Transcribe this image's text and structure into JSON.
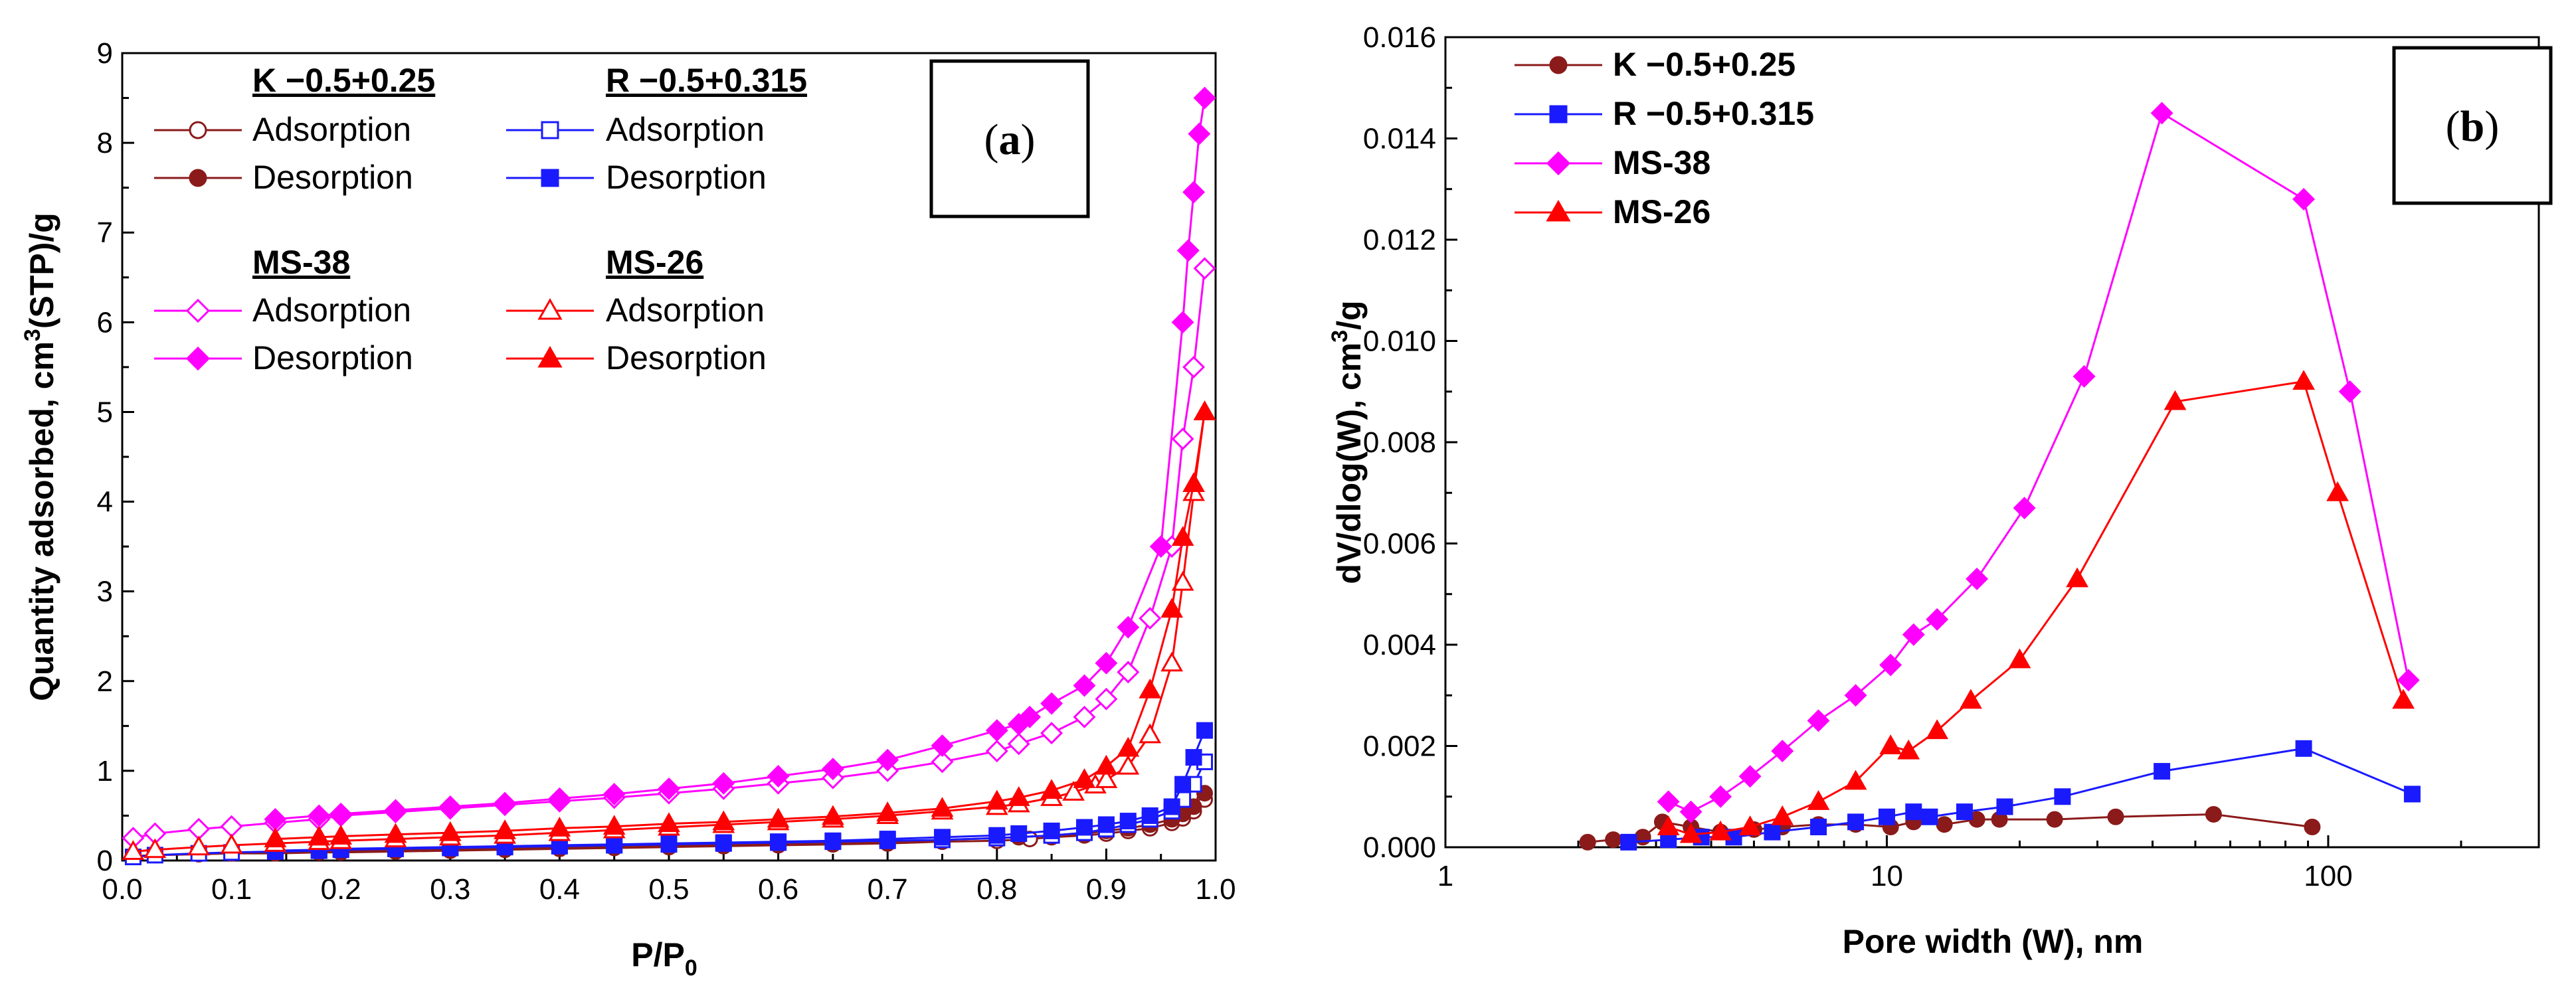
{
  "chart_data": [
    {
      "id": "a",
      "type": "line",
      "panel_label": "a",
      "xlabel": "P/P",
      "xlabel_sub": "0",
      "ylabel": "Quantity adsorbed, cm",
      "ylabel_sup": "3",
      "ylabel_tail": "(STP)/g",
      "xlim": [
        0.0,
        1.0
      ],
      "ylim": [
        0,
        9
      ],
      "x_ticks": [
        0.0,
        0.1,
        0.2,
        0.3,
        0.4,
        0.5,
        0.6,
        0.7,
        0.8,
        0.9,
        1.0
      ],
      "x_tick_labels": [
        "0.0",
        "0.1",
        "0.2",
        "0.3",
        "0.4",
        "0.5",
        "0.6",
        "0.7",
        "0.8",
        "0.9",
        "1.0"
      ],
      "y_ticks": [
        0,
        1,
        2,
        3,
        4,
        5,
        6,
        7,
        8,
        9
      ],
      "y_tick_labels": [
        "0",
        "1",
        "2",
        "3",
        "4",
        "5",
        "6",
        "7",
        "8",
        "9"
      ],
      "legend_groups": [
        {
          "title": "K −0.5+0.25",
          "adsorption_label": "Adsorption",
          "desorption_label": "Desorption"
        },
        {
          "title": "R −0.5+0.315",
          "adsorption_label": "Adsorption",
          "desorption_label": "Desorption"
        },
        {
          "title": "MS-38",
          "adsorption_label": "Adsorption",
          "desorption_label": "Desorption"
        },
        {
          "title": "MS-26",
          "adsorption_label": "Adsorption",
          "desorption_label": "Desorption"
        }
      ],
      "series": [
        {
          "name": "K Adsorption",
          "color": "#8b1a1a",
          "marker": "circle",
          "filled": false,
          "x": [
            0.01,
            0.03,
            0.07,
            0.1,
            0.14,
            0.18,
            0.2,
            0.25,
            0.3,
            0.35,
            0.4,
            0.45,
            0.5,
            0.55,
            0.6,
            0.65,
            0.7,
            0.75,
            0.8,
            0.83,
            0.85,
            0.88,
            0.9,
            0.92,
            0.94,
            0.96,
            0.97,
            0.98,
            0.99
          ],
          "y": [
            0.05,
            0.06,
            0.07,
            0.08,
            0.08,
            0.09,
            0.09,
            0.1,
            0.11,
            0.12,
            0.13,
            0.14,
            0.15,
            0.16,
            0.17,
            0.18,
            0.19,
            0.21,
            0.22,
            0.24,
            0.26,
            0.28,
            0.3,
            0.33,
            0.36,
            0.42,
            0.47,
            0.55,
            0.68
          ]
        },
        {
          "name": "K Desorption",
          "color": "#8b1a1a",
          "marker": "circle",
          "filled": true,
          "x": [
            0.99,
            0.98,
            0.97,
            0.96,
            0.94,
            0.92,
            0.9,
            0.88,
            0.85,
            0.82,
            0.8,
            0.75,
            0.7,
            0.65,
            0.6,
            0.55,
            0.5,
            0.45,
            0.4,
            0.35,
            0.3,
            0.25,
            0.2,
            0.18,
            0.14
          ],
          "y": [
            0.75,
            0.6,
            0.52,
            0.46,
            0.4,
            0.36,
            0.33,
            0.3,
            0.28,
            0.26,
            0.25,
            0.23,
            0.21,
            0.2,
            0.19,
            0.18,
            0.17,
            0.16,
            0.15,
            0.14,
            0.13,
            0.12,
            0.11,
            0.1,
            0.09
          ]
        },
        {
          "name": "R Adsorption",
          "color": "#1a1aff",
          "marker": "square",
          "filled": false,
          "x": [
            0.01,
            0.03,
            0.07,
            0.1,
            0.14,
            0.18,
            0.2,
            0.25,
            0.3,
            0.35,
            0.4,
            0.45,
            0.5,
            0.55,
            0.6,
            0.65,
            0.7,
            0.75,
            0.8,
            0.85,
            0.88,
            0.9,
            0.92,
            0.94,
            0.96,
            0.97,
            0.98,
            0.99
          ],
          "y": [
            0.04,
            0.06,
            0.08,
            0.09,
            0.1,
            0.11,
            0.12,
            0.13,
            0.14,
            0.15,
            0.16,
            0.17,
            0.18,
            0.19,
            0.2,
            0.21,
            0.22,
            0.23,
            0.25,
            0.28,
            0.31,
            0.35,
            0.4,
            0.46,
            0.55,
            0.68,
            0.85,
            1.1
          ]
        },
        {
          "name": "R Desorption",
          "color": "#1a1aff",
          "marker": "square",
          "filled": true,
          "x": [
            0.99,
            0.98,
            0.97,
            0.96,
            0.94,
            0.92,
            0.9,
            0.88,
            0.85,
            0.82,
            0.8,
            0.75,
            0.7,
            0.65,
            0.6,
            0.55,
            0.5,
            0.45,
            0.4,
            0.35,
            0.3,
            0.25,
            0.2,
            0.18,
            0.14
          ],
          "y": [
            1.45,
            1.15,
            0.85,
            0.6,
            0.5,
            0.44,
            0.4,
            0.37,
            0.33,
            0.3,
            0.28,
            0.26,
            0.24,
            0.22,
            0.21,
            0.2,
            0.19,
            0.18,
            0.17,
            0.16,
            0.15,
            0.14,
            0.13,
            0.12,
            0.11
          ]
        },
        {
          "name": "MS-38 Adsorption",
          "color": "#ff00ff",
          "marker": "diamond",
          "filled": false,
          "x": [
            0.01,
            0.03,
            0.07,
            0.1,
            0.14,
            0.18,
            0.2,
            0.25,
            0.3,
            0.35,
            0.4,
            0.45,
            0.5,
            0.55,
            0.6,
            0.65,
            0.7,
            0.75,
            0.8,
            0.82,
            0.85,
            0.88,
            0.9,
            0.92,
            0.94,
            0.96,
            0.97,
            0.98,
            0.99
          ],
          "y": [
            0.25,
            0.3,
            0.35,
            0.38,
            0.42,
            0.46,
            0.5,
            0.54,
            0.58,
            0.62,
            0.66,
            0.7,
            0.75,
            0.8,
            0.86,
            0.92,
            1.0,
            1.1,
            1.22,
            1.3,
            1.42,
            1.6,
            1.8,
            2.1,
            2.7,
            3.5,
            4.7,
            5.5,
            6.6
          ]
        },
        {
          "name": "MS-38 Desorption",
          "color": "#ff00ff",
          "marker": "diamond",
          "filled": true,
          "x": [
            0.99,
            0.985,
            0.98,
            0.975,
            0.97,
            0.95,
            0.92,
            0.9,
            0.88,
            0.85,
            0.83,
            0.82,
            0.8,
            0.75,
            0.7,
            0.65,
            0.6,
            0.55,
            0.5,
            0.45,
            0.4,
            0.35,
            0.3,
            0.25,
            0.2,
            0.18,
            0.14
          ],
          "y": [
            8.5,
            8.1,
            7.45,
            6.8,
            6.0,
            3.5,
            2.6,
            2.2,
            1.95,
            1.75,
            1.6,
            1.52,
            1.45,
            1.28,
            1.12,
            1.02,
            0.94,
            0.86,
            0.8,
            0.74,
            0.69,
            0.64,
            0.6,
            0.56,
            0.52,
            0.5,
            0.46
          ]
        },
        {
          "name": "MS-26 Adsorption",
          "color": "#ff0000",
          "marker": "triangle",
          "filled": false,
          "x": [
            0.01,
            0.03,
            0.07,
            0.1,
            0.14,
            0.18,
            0.2,
            0.25,
            0.3,
            0.35,
            0.4,
            0.45,
            0.5,
            0.55,
            0.6,
            0.65,
            0.7,
            0.75,
            0.8,
            0.82,
            0.85,
            0.87,
            0.89,
            0.9,
            0.92,
            0.94,
            0.96,
            0.97,
            0.98,
            0.99
          ],
          "y": [
            0.1,
            0.12,
            0.15,
            0.17,
            0.19,
            0.21,
            0.22,
            0.24,
            0.26,
            0.28,
            0.31,
            0.34,
            0.37,
            0.4,
            0.43,
            0.46,
            0.5,
            0.55,
            0.6,
            0.63,
            0.7,
            0.76,
            0.84,
            0.9,
            1.05,
            1.4,
            2.2,
            3.1,
            4.1,
            5.0
          ]
        },
        {
          "name": "MS-26 Desorption",
          "color": "#ff0000",
          "marker": "triangle",
          "filled": true,
          "x": [
            0.99,
            0.98,
            0.97,
            0.96,
            0.94,
            0.92,
            0.9,
            0.88,
            0.85,
            0.82,
            0.8,
            0.75,
            0.7,
            0.65,
            0.6,
            0.55,
            0.5,
            0.45,
            0.4,
            0.35,
            0.3,
            0.25,
            0.2,
            0.18,
            0.14
          ],
          "y": [
            5.0,
            4.2,
            3.6,
            2.8,
            1.9,
            1.25,
            1.05,
            0.9,
            0.78,
            0.7,
            0.66,
            0.58,
            0.53,
            0.49,
            0.46,
            0.43,
            0.41,
            0.38,
            0.36,
            0.33,
            0.31,
            0.29,
            0.27,
            0.26,
            0.24
          ]
        }
      ]
    },
    {
      "id": "b",
      "type": "line",
      "panel_label": "b",
      "xlabel": "Pore width (W), nm",
      "ylabel": "dV/dlog(W), cm",
      "ylabel_sup": "3",
      "ylabel_tail": "/g",
      "xscale": "log",
      "xlim": [
        1,
        300
      ],
      "ylim": [
        0.0,
        0.016
      ],
      "x_ticks": [
        1,
        10,
        100
      ],
      "x_tick_labels": [
        "1",
        "10",
        "100"
      ],
      "y_ticks": [
        0.0,
        0.002,
        0.004,
        0.006,
        0.008,
        0.01,
        0.012,
        0.014,
        0.016
      ],
      "y_tick_labels": [
        "0.000",
        "0.002",
        "0.004",
        "0.006",
        "0.008",
        "0.010",
        "0.012",
        "0.014",
        "0.016"
      ],
      "legend": [
        "K −0.5+0.25",
        "R −0.5+0.315",
        "MS-38",
        "MS-26"
      ],
      "series": [
        {
          "name": "K −0.5+0.25",
          "color": "#8b1a1a",
          "marker": "circle",
          "x": [
            2.1,
            2.4,
            2.8,
            3.1,
            3.6,
            4.2,
            5.0,
            5.8,
            7.0,
            8.5,
            10.2,
            11.5,
            13.5,
            16,
            18,
            24,
            33,
            55,
            92
          ],
          "y": [
            0.0001,
            0.00015,
            0.0002,
            0.0005,
            0.0004,
            0.0003,
            0.00035,
            0.0004,
            0.00045,
            0.00045,
            0.0004,
            0.0005,
            0.00045,
            0.00055,
            0.00055,
            0.00055,
            0.0006,
            0.00065,
            0.0004
          ]
        },
        {
          "name": "R −0.5+0.315",
          "color": "#1a1aff",
          "marker": "square",
          "x": [
            2.6,
            3.2,
            3.8,
            4.5,
            5.5,
            7.0,
            8.5,
            10,
            11.5,
            12.5,
            15,
            18.5,
            25,
            42,
            88,
            155
          ],
          "y": [
            0.0001,
            0.00015,
            0.0002,
            0.0002,
            0.0003,
            0.0004,
            0.0005,
            0.0006,
            0.0007,
            0.0006,
            0.0007,
            0.0008,
            0.001,
            0.0015,
            0.00195,
            0.00105
          ]
        },
        {
          "name": "MS-38",
          "color": "#ff00ff",
          "marker": "diamond",
          "x": [
            3.2,
            3.6,
            4.2,
            4.9,
            5.8,
            7.0,
            8.5,
            10.2,
            11.5,
            13,
            16,
            20.5,
            28,
            42,
            88,
            112,
            152
          ],
          "y": [
            0.0009,
            0.0007,
            0.001,
            0.0014,
            0.0019,
            0.0025,
            0.003,
            0.0036,
            0.0042,
            0.0045,
            0.0053,
            0.0067,
            0.0093,
            0.0145,
            0.0128,
            0.009,
            0.0033
          ]
        },
        {
          "name": "MS-26",
          "color": "#ff0000",
          "marker": "triangle",
          "x": [
            3.2,
            3.6,
            4.2,
            4.9,
            5.8,
            7.0,
            8.5,
            10.2,
            11.2,
            13,
            15.5,
            20,
            27,
            45,
            88,
            105,
            148
          ],
          "y": [
            0.0004,
            0.00025,
            0.0003,
            0.0004,
            0.0006,
            0.0009,
            0.0013,
            0.002,
            0.0019,
            0.0023,
            0.0029,
            0.0037,
            0.0053,
            0.0088,
            0.0092,
            0.007,
            0.0029
          ]
        }
      ]
    }
  ]
}
